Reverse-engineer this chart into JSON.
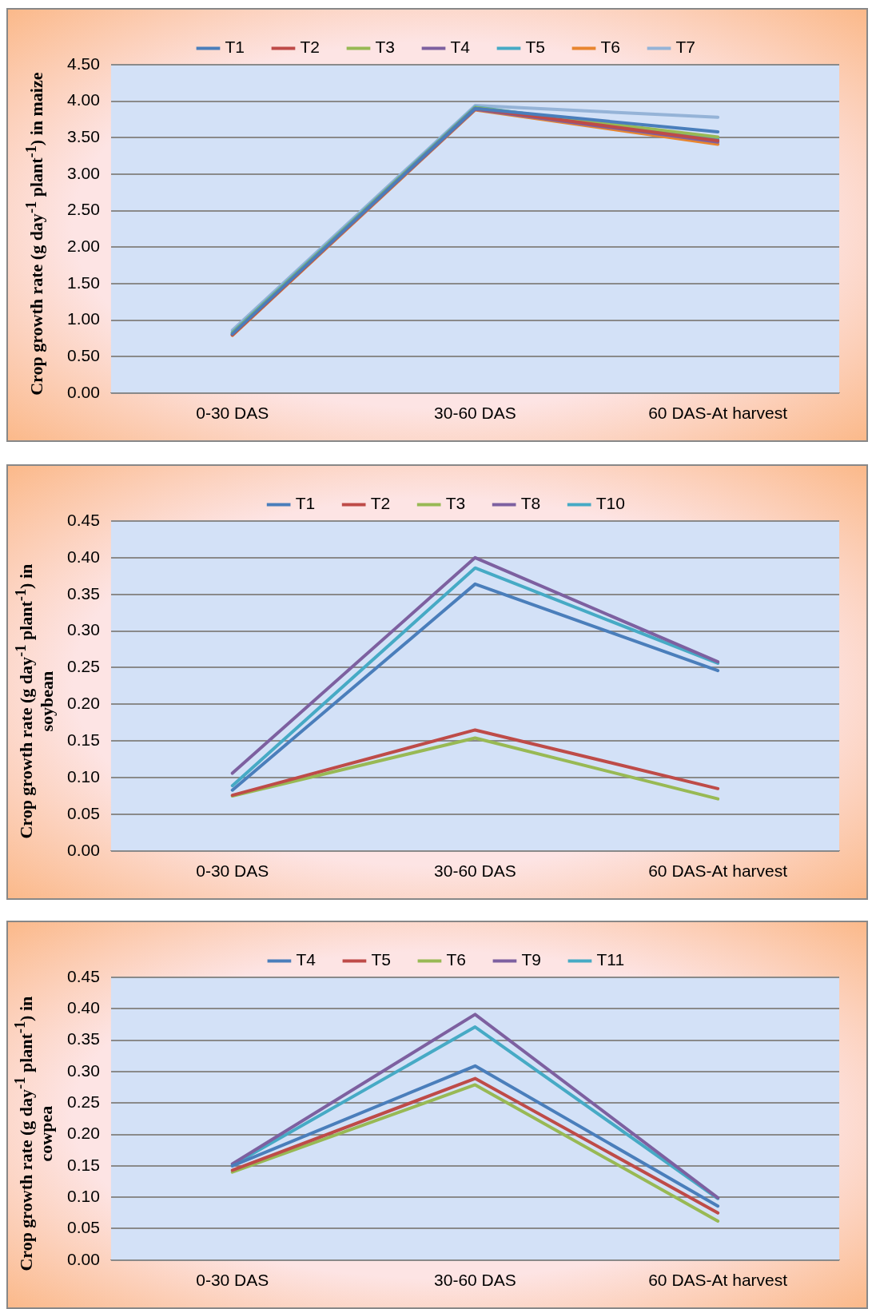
{
  "chart_data": [
    {
      "type": "line",
      "ylabel": "Crop growth rate (g day$^{-1}$ plant$^{-1}$) in maize",
      "categories": [
        "0-30 DAS",
        "30-60 DAS",
        "60 DAS-At harvest"
      ],
      "series": [
        {
          "name": "T1",
          "color": "#4a7ebb",
          "values": [
            0.81,
            3.9,
            3.58
          ]
        },
        {
          "name": "T2",
          "color": "#be4b48",
          "values": [
            0.8,
            3.9,
            3.46
          ]
        },
        {
          "name": "T3",
          "color": "#98b954",
          "values": [
            0.82,
            3.91,
            3.51
          ]
        },
        {
          "name": "T4",
          "color": "#7d60a0",
          "values": [
            0.8,
            3.89,
            3.44
          ]
        },
        {
          "name": "T5",
          "color": "#46aac5",
          "values": [
            0.83,
            3.92,
            3.48
          ]
        },
        {
          "name": "T6",
          "color": "#e8852f",
          "values": [
            0.79,
            3.88,
            3.41
          ]
        },
        {
          "name": "T7",
          "color": "#95b3d7",
          "values": [
            0.86,
            3.94,
            3.78
          ]
        }
      ],
      "ylim": [
        0,
        4.5
      ],
      "yticks": [
        {
          "value": 0,
          "label": "0.00"
        },
        {
          "value": 0.5,
          "label": "0.50"
        },
        {
          "value": 1,
          "label": "1.00"
        },
        {
          "value": 1.5,
          "label": "1.50"
        },
        {
          "value": 2,
          "label": "2.00"
        },
        {
          "value": 2.5,
          "label": "2.50"
        },
        {
          "value": 3,
          "label": "3.00"
        },
        {
          "value": 3.5,
          "label": "3.50"
        },
        {
          "value": 4,
          "label": "4.00"
        },
        {
          "value": 4.5,
          "label": "4.50"
        }
      ],
      "grid": "y",
      "legend": "top",
      "marker": "none",
      "line_style": "solid"
    },
    {
      "type": "line",
      "ylabel": "Crop growth rate (g day$^{-1}$ plant$^{-1}$) in soybean",
      "categories": [
        "0-30 DAS",
        "30-60 DAS",
        "60 DAS-At harvest"
      ],
      "series": [
        {
          "name": "T1",
          "color": "#4a7ebb",
          "values": [
            0.083,
            0.364,
            0.246
          ]
        },
        {
          "name": "T2",
          "color": "#be4b48",
          "values": [
            0.076,
            0.165,
            0.085
          ]
        },
        {
          "name": "T3",
          "color": "#98b954",
          "values": [
            0.075,
            0.154,
            0.071
          ]
        },
        {
          "name": "T8",
          "color": "#7d60a0",
          "values": [
            0.106,
            0.4,
            0.258
          ]
        },
        {
          "name": "T10",
          "color": "#46aac5",
          "values": [
            0.089,
            0.386,
            0.256
          ]
        }
      ],
      "ylim": [
        0,
        0.45
      ],
      "yticks": [
        {
          "value": 0,
          "label": "0.00"
        },
        {
          "value": 0.05,
          "label": "0.05"
        },
        {
          "value": 0.1,
          "label": "0.10"
        },
        {
          "value": 0.15,
          "label": "0.15"
        },
        {
          "value": 0.2,
          "label": "0.20"
        },
        {
          "value": 0.25,
          "label": "0.25"
        },
        {
          "value": 0.3,
          "label": "0.30"
        },
        {
          "value": 0.35,
          "label": "0.35"
        },
        {
          "value": 0.4,
          "label": "0.40"
        },
        {
          "value": 0.45,
          "label": "0.45"
        }
      ],
      "grid": "y",
      "legend": "top",
      "marker": "none",
      "line_style": "solid"
    },
    {
      "type": "line",
      "ylabel": "Crop growth rate (g day$^{-1}$ plant$^{-1}$) in cowpea",
      "categories": [
        "0-30 DAS",
        "30-60 DAS",
        "60 DAS-At harvest"
      ],
      "series": [
        {
          "name": "T4",
          "color": "#4a7ebb",
          "values": [
            0.15,
            0.309,
            0.086
          ]
        },
        {
          "name": "T5",
          "color": "#be4b48",
          "values": [
            0.143,
            0.289,
            0.075
          ]
        },
        {
          "name": "T6",
          "color": "#98b954",
          "values": [
            0.14,
            0.279,
            0.062
          ]
        },
        {
          "name": "T9",
          "color": "#7d60a0",
          "values": [
            0.153,
            0.391,
            0.099
          ]
        },
        {
          "name": "T11",
          "color": "#46aac5",
          "values": [
            0.151,
            0.371,
            0.098
          ]
        }
      ],
      "ylim": [
        0,
        0.45
      ],
      "yticks": [
        {
          "value": 0,
          "label": "0.00"
        },
        {
          "value": 0.05,
          "label": "0.05"
        },
        {
          "value": 0.1,
          "label": "0.10"
        },
        {
          "value": 0.15,
          "label": "0.15"
        },
        {
          "value": 0.2,
          "label": "0.20"
        },
        {
          "value": 0.25,
          "label": "0.25"
        },
        {
          "value": 0.3,
          "label": "0.30"
        },
        {
          "value": 0.35,
          "label": "0.35"
        },
        {
          "value": 0.4,
          "label": "0.40"
        },
        {
          "value": 0.45,
          "label": "0.45"
        }
      ],
      "grid": "y",
      "legend": "top",
      "marker": "none",
      "line_style": "solid"
    }
  ]
}
